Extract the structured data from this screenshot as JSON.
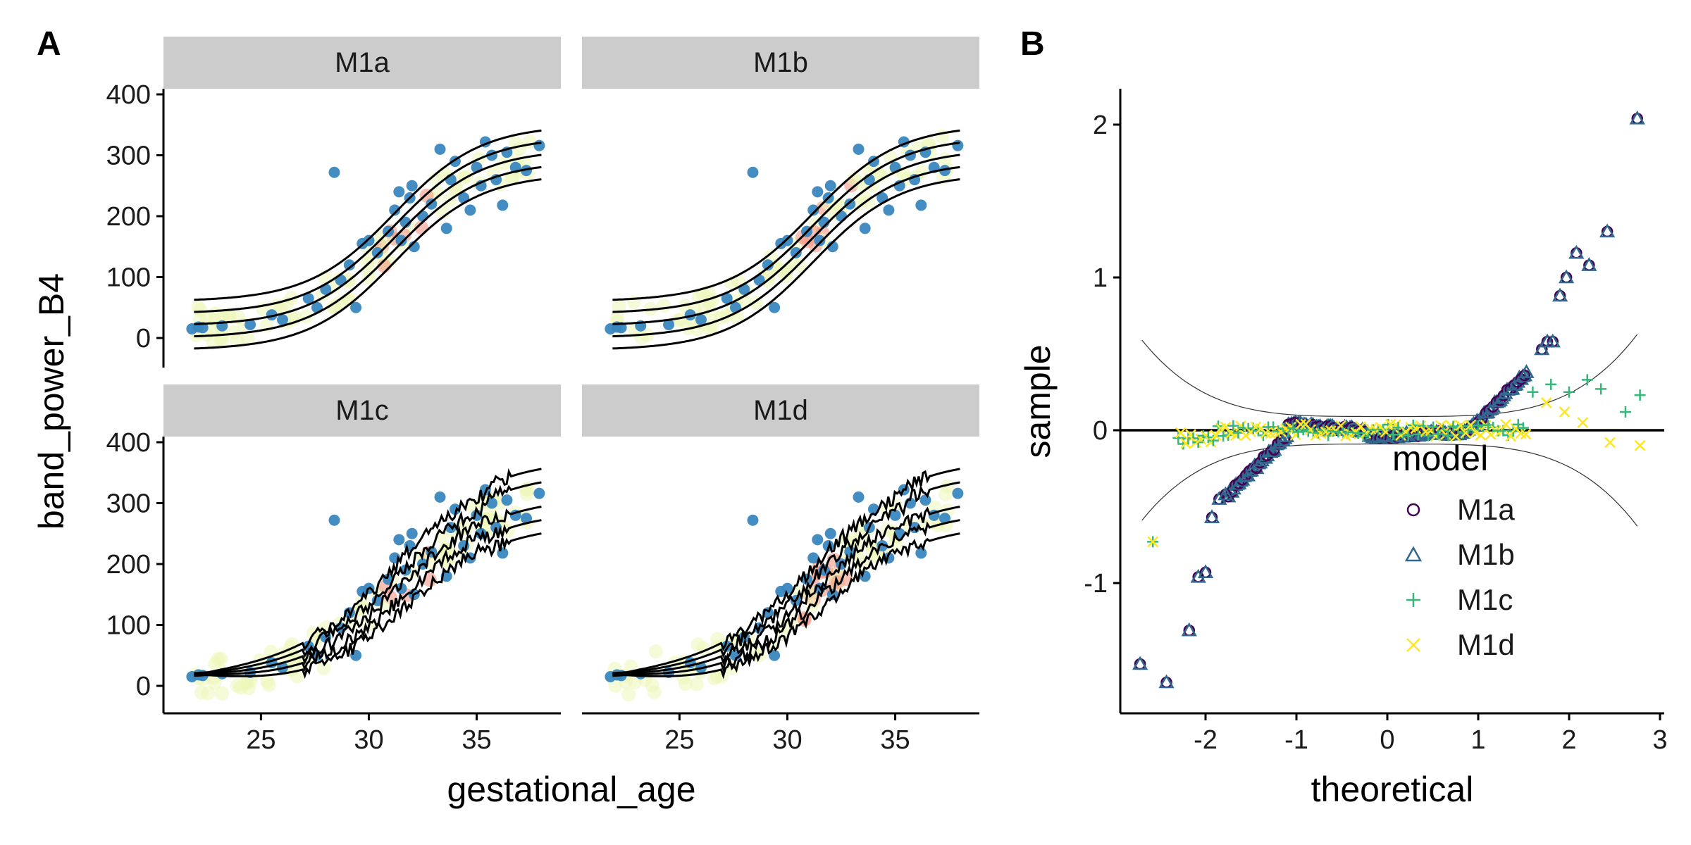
{
  "figure": {
    "panel_a_label": "A",
    "panel_b_label": "B"
  },
  "chart_data": [
    {
      "type": "scatter",
      "panel": "A",
      "description_text": "faceted scatter with centile curves",
      "xlabel": "gestational_age",
      "ylabel": "band_power_B4",
      "xlim": [
        21.2,
        38.6
      ],
      "ylim": [
        -45,
        490
      ],
      "x_ticks": [
        25,
        30,
        35
      ],
      "x_tick_labels": [
        "25",
        "30",
        "35"
      ],
      "y_ticks": [
        0,
        100,
        200,
        300,
        400
      ],
      "y_tick_labels": [
        "0",
        "100",
        "200",
        "300",
        "400"
      ],
      "facets": [
        "M1a",
        "M1b",
        "M1c",
        "M1d"
      ],
      "centile_offsets": [
        -40,
        -20,
        0,
        20,
        40
      ],
      "colors": {
        "point": "#3a87c0",
        "curve": "#000000",
        "strip": "#cccccc",
        "density_low": "#e8f4a0",
        "density_high": "#ef6a4c"
      },
      "points": [
        [
          21.8,
          15
        ],
        [
          22.1,
          18
        ],
        [
          22.3,
          17
        ],
        [
          23.2,
          20
        ],
        [
          24.5,
          22
        ],
        [
          25.5,
          38
        ],
        [
          26.0,
          30
        ],
        [
          27.2,
          65
        ],
        [
          27.6,
          50
        ],
        [
          28.0,
          80
        ],
        [
          28.4,
          272
        ],
        [
          28.7,
          95
        ],
        [
          29.1,
          120
        ],
        [
          29.4,
          50
        ],
        [
          29.7,
          155
        ],
        [
          30.0,
          160
        ],
        [
          30.4,
          140
        ],
        [
          30.9,
          175
        ],
        [
          31.2,
          210
        ],
        [
          31.4,
          240
        ],
        [
          31.5,
          160
        ],
        [
          31.7,
          190
        ],
        [
          31.9,
          230
        ],
        [
          32.0,
          250
        ],
        [
          32.1,
          150
        ],
        [
          32.5,
          200
        ],
        [
          32.9,
          220
        ],
        [
          33.3,
          310
        ],
        [
          33.6,
          180
        ],
        [
          33.8,
          260
        ],
        [
          34.0,
          290
        ],
        [
          34.4,
          230
        ],
        [
          34.7,
          210
        ],
        [
          35.0,
          280
        ],
        [
          35.2,
          250
        ],
        [
          35.4,
          322
        ],
        [
          35.7,
          300
        ],
        [
          35.9,
          260
        ],
        [
          36.2,
          218
        ],
        [
          36.4,
          305
        ],
        [
          36.8,
          280
        ],
        [
          37.3,
          275
        ],
        [
          37.9,
          316
        ]
      ]
    },
    {
      "type": "scatter",
      "panel": "B",
      "description_text": "QQ plot of residuals by model",
      "xlabel": "theoretical",
      "ylabel": "sample",
      "xlim": [
        -3.0,
        3.05
      ],
      "ylim": [
        -1.85,
        2.25
      ],
      "x_ticks": [
        -2,
        -1,
        0,
        1,
        2,
        3
      ],
      "x_tick_labels": [
        "-2",
        "-1",
        "0",
        "1",
        "2",
        "3"
      ],
      "y_ticks": [
        -1,
        0,
        1,
        2
      ],
      "y_tick_labels": [
        "-1",
        "0",
        "1",
        "2"
      ],
      "legend_title": "model",
      "legend_position": "inside-right",
      "series": [
        {
          "name": "M1a",
          "marker": "circle",
          "color": "#440154"
        },
        {
          "name": "M1b",
          "marker": "triangle",
          "color": "#31688e"
        },
        {
          "name": "M1c",
          "marker": "plus",
          "color": "#35b779"
        },
        {
          "name": "M1d",
          "marker": "cross",
          "color": "#fde725"
        }
      ],
      "ab_tail_points": [
        [
          -2.72,
          -1.53
        ],
        [
          -2.43,
          -1.65
        ],
        [
          -2.18,
          -1.31
        ],
        [
          -2.08,
          -0.96
        ],
        [
          -2.0,
          -0.93
        ],
        [
          -1.93,
          -0.57
        ],
        [
          -1.85,
          -0.45
        ],
        [
          -1.78,
          -0.42
        ],
        [
          1.7,
          0.53
        ],
        [
          1.76,
          0.58
        ],
        [
          1.82,
          0.58
        ],
        [
          1.9,
          0.88
        ],
        [
          1.97,
          1.0
        ],
        [
          2.08,
          1.16
        ],
        [
          2.22,
          1.08
        ],
        [
          2.42,
          1.3
        ],
        [
          2.75,
          2.04
        ]
      ],
      "cd_tail_points": [
        [
          -2.58,
          -0.73
        ],
        [
          1.6,
          0.25
        ],
        [
          1.8,
          0.3
        ],
        [
          2.0,
          0.25
        ],
        [
          2.2,
          0.33
        ],
        [
          2.35,
          0.27
        ],
        [
          2.62,
          0.12
        ],
        [
          2.78,
          0.23
        ]
      ],
      "d_tail_points": [
        [
          1.75,
          0.18
        ],
        [
          1.95,
          0.12
        ],
        [
          2.15,
          0.05
        ],
        [
          2.45,
          -0.08
        ],
        [
          2.78,
          -0.1
        ]
      ]
    }
  ]
}
